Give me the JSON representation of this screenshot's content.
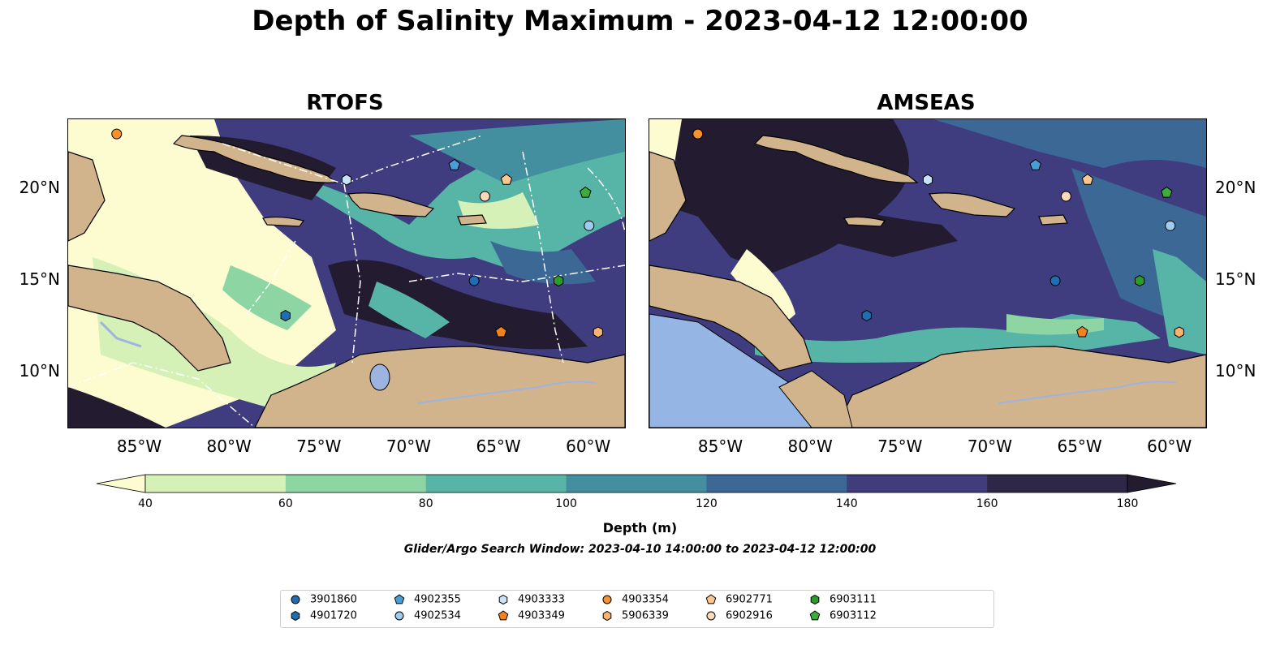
{
  "title": "Depth of Salinity Maximum - 2023-04-12 12:00:00",
  "panels": [
    "RTOFS",
    "AMSEAS"
  ],
  "colorbar": {
    "label": "Depth (m)",
    "ticks": [
      "40",
      "60",
      "80",
      "100",
      "120",
      "140",
      "160",
      "180"
    ],
    "colors": [
      "#fdfcd0",
      "#d6f1b8",
      "#8ed5a4",
      "#57b5a8",
      "#438f9f",
      "#3b6895",
      "#403d7d",
      "#2f2746",
      "#231b30"
    ],
    "extend": "both"
  },
  "search_window": "Glider/Argo Search Window: 2023-04-10 14:00:00 to 2023-04-12 12:00:00",
  "chart_data": [
    {
      "type": "heatmap",
      "title": "RTOFS",
      "variable": "Depth of salinity maximum (m)",
      "clim": [
        40,
        180
      ],
      "lon_range": [
        -89,
        -58
      ],
      "lat_range": [
        7,
        23.8
      ],
      "x_ticks": [
        "85°W",
        "80°W",
        "75°W",
        "70°W",
        "65°W",
        "60°W"
      ],
      "y_ticks": [
        "10°N",
        "15°N",
        "20°N"
      ],
      "floats": [
        {
          "id": "3901860",
          "lon": -66.4,
          "lat": 15.0
        },
        {
          "id": "4901720",
          "lon": -76.9,
          "lat": 13.1
        },
        {
          "id": "4902355",
          "lon": -67.5,
          "lat": 21.3
        },
        {
          "id": "4902534",
          "lon": -60.0,
          "lat": 18.0
        },
        {
          "id": "4903333",
          "lon": -73.5,
          "lat": 20.5
        },
        {
          "id": "4903349",
          "lon": -64.9,
          "lat": 12.2
        },
        {
          "id": "4903354",
          "lon": -86.3,
          "lat": 23.0
        },
        {
          "id": "5906339",
          "lon": -59.5,
          "lat": 12.2
        },
        {
          "id": "6902771",
          "lon": -64.6,
          "lat": 20.5
        },
        {
          "id": "6902916",
          "lon": -65.8,
          "lat": 19.6
        },
        {
          "id": "6903111",
          "lon": -61.7,
          "lat": 15.0
        },
        {
          "id": "6903112",
          "lon": -60.2,
          "lat": 19.8
        }
      ]
    },
    {
      "type": "heatmap",
      "title": "AMSEAS",
      "variable": "Depth of salinity maximum (m)",
      "clim": [
        40,
        180
      ],
      "lon_range": [
        -89,
        -58
      ],
      "lat_range": [
        7,
        23.8
      ],
      "x_ticks": [
        "85°W",
        "80°W",
        "75°W",
        "70°W",
        "65°W",
        "60°W"
      ],
      "y_ticks": [
        "10°N",
        "15°N",
        "20°N"
      ],
      "floats": [
        {
          "id": "3901860",
          "lon": -66.4,
          "lat": 15.0
        },
        {
          "id": "4901720",
          "lon": -76.9,
          "lat": 13.1
        },
        {
          "id": "4902355",
          "lon": -67.5,
          "lat": 21.3
        },
        {
          "id": "4902534",
          "lon": -60.0,
          "lat": 18.0
        },
        {
          "id": "4903333",
          "lon": -73.5,
          "lat": 20.5
        },
        {
          "id": "4903349",
          "lon": -64.9,
          "lat": 12.2
        },
        {
          "id": "4903354",
          "lon": -86.3,
          "lat": 23.0
        },
        {
          "id": "5906339",
          "lon": -59.5,
          "lat": 12.2
        },
        {
          "id": "6902771",
          "lon": -64.6,
          "lat": 20.5
        },
        {
          "id": "6902916",
          "lon": -65.8,
          "lat": 19.6
        },
        {
          "id": "6903111",
          "lon": -61.7,
          "lat": 15.0
        },
        {
          "id": "6903112",
          "lon": -60.2,
          "lat": 19.8
        }
      ]
    }
  ],
  "legend": [
    {
      "id": "3901860",
      "marker": "circle",
      "color": "#1f6eb4"
    },
    {
      "id": "4901720",
      "marker": "hexagon",
      "color": "#1f6eb4"
    },
    {
      "id": "4902355",
      "marker": "pentagon",
      "color": "#4a9ed6"
    },
    {
      "id": "4902534",
      "marker": "circle",
      "color": "#9ecbee"
    },
    {
      "id": "4903333",
      "marker": "hexagon",
      "color": "#c6e3f7"
    },
    {
      "id": "4903349",
      "marker": "pentagon",
      "color": "#f5801e"
    },
    {
      "id": "4903354",
      "marker": "circle",
      "color": "#f5922e"
    },
    {
      "id": "5906339",
      "marker": "hexagon",
      "color": "#fbb36f"
    },
    {
      "id": "6902771",
      "marker": "pentagon",
      "color": "#fcc690"
    },
    {
      "id": "6902916",
      "marker": "circle",
      "color": "#fdd9bc"
    },
    {
      "id": "6903111",
      "marker": "hexagon",
      "color": "#2b9b2b"
    },
    {
      "id": "6903112",
      "marker": "pentagon",
      "color": "#3cac3c"
    }
  ]
}
